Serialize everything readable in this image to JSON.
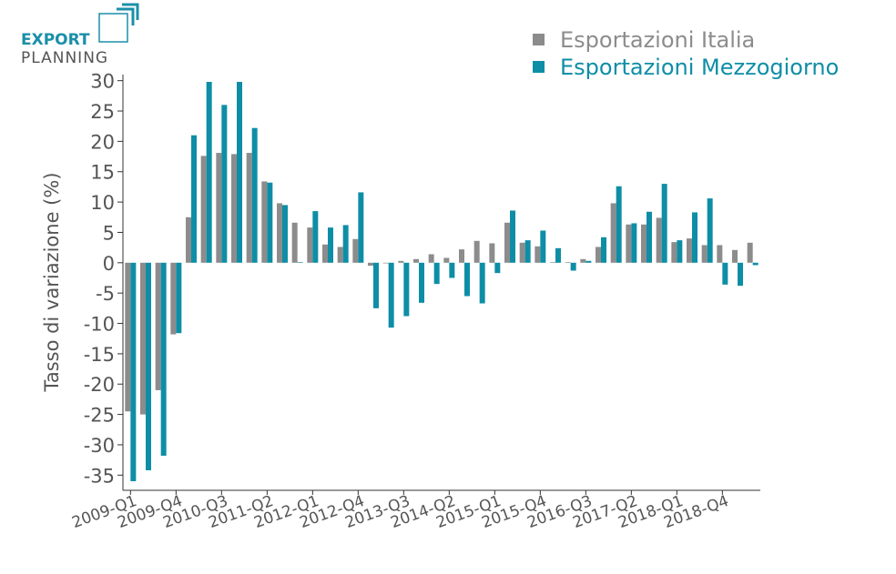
{
  "logo": {
    "line1": "EXPORT",
    "line2": "PLANNING"
  },
  "chart_data": {
    "type": "bar",
    "y_label": "Tasso di variazione (%)",
    "categories": [
      "2009-Q1",
      null,
      null,
      "2009-Q4",
      null,
      null,
      "2010-Q3",
      null,
      null,
      "2011-Q2",
      null,
      null,
      "2012-Q1",
      null,
      null,
      "2012-Q4",
      null,
      null,
      "2013-Q3",
      null,
      null,
      "2014-Q2",
      null,
      null,
      "2015-Q1",
      null,
      null,
      "2015-Q4",
      null,
      null,
      "2016-Q3",
      null,
      null,
      "2017-Q2",
      null,
      null,
      "2018-Q1",
      null,
      null,
      "2018-Q4",
      null,
      null
    ],
    "series": [
      {
        "name": "Esportazioni Italia",
        "color": "#8c8c8c",
        "values": [
          -24.5,
          -25,
          -21,
          -11.8,
          7.5,
          17.6,
          18.1,
          17.9,
          18.1,
          13.4,
          9.8,
          6.6,
          5.8,
          3,
          2.6,
          3.9,
          -0.5,
          -0.1,
          0.3,
          0.6,
          1.4,
          0.8,
          2.2,
          3.6,
          3.2,
          6.6,
          3.3,
          2.7,
          0.1,
          0.1,
          0.6,
          2.6,
          9.8,
          6.3,
          6.3,
          7.4,
          3.4,
          4,
          2.9,
          2.9,
          2.1,
          3.3
        ]
      },
      {
        "name": "Esportazioni Mezzogiorno",
        "color": "#0e8ea6",
        "values": [
          -36,
          -34.2,
          -31.8,
          -11.6,
          21,
          29.8,
          26,
          29.8,
          22.2,
          13.2,
          9.5,
          0.1,
          8.5,
          5.8,
          6.2,
          11.6,
          -7.5,
          -10.7,
          -8.8,
          -6.6,
          -3.5,
          -2.5,
          -5.5,
          -6.7,
          -1.7,
          8.6,
          3.7,
          5.3,
          2.4,
          -1.3,
          0.3,
          4.2,
          12.6,
          6.5,
          8.4,
          13,
          3.7,
          8.3,
          10.6,
          -3.6,
          -3.8,
          -0.4
        ]
      }
    ],
    "ylim": [
      -37.5,
      31
    ],
    "yticks": [
      -35,
      -30,
      -25,
      -20,
      -15,
      -10,
      -5,
      0,
      5,
      10,
      15,
      20,
      25,
      30
    ],
    "legend": "top-right"
  }
}
